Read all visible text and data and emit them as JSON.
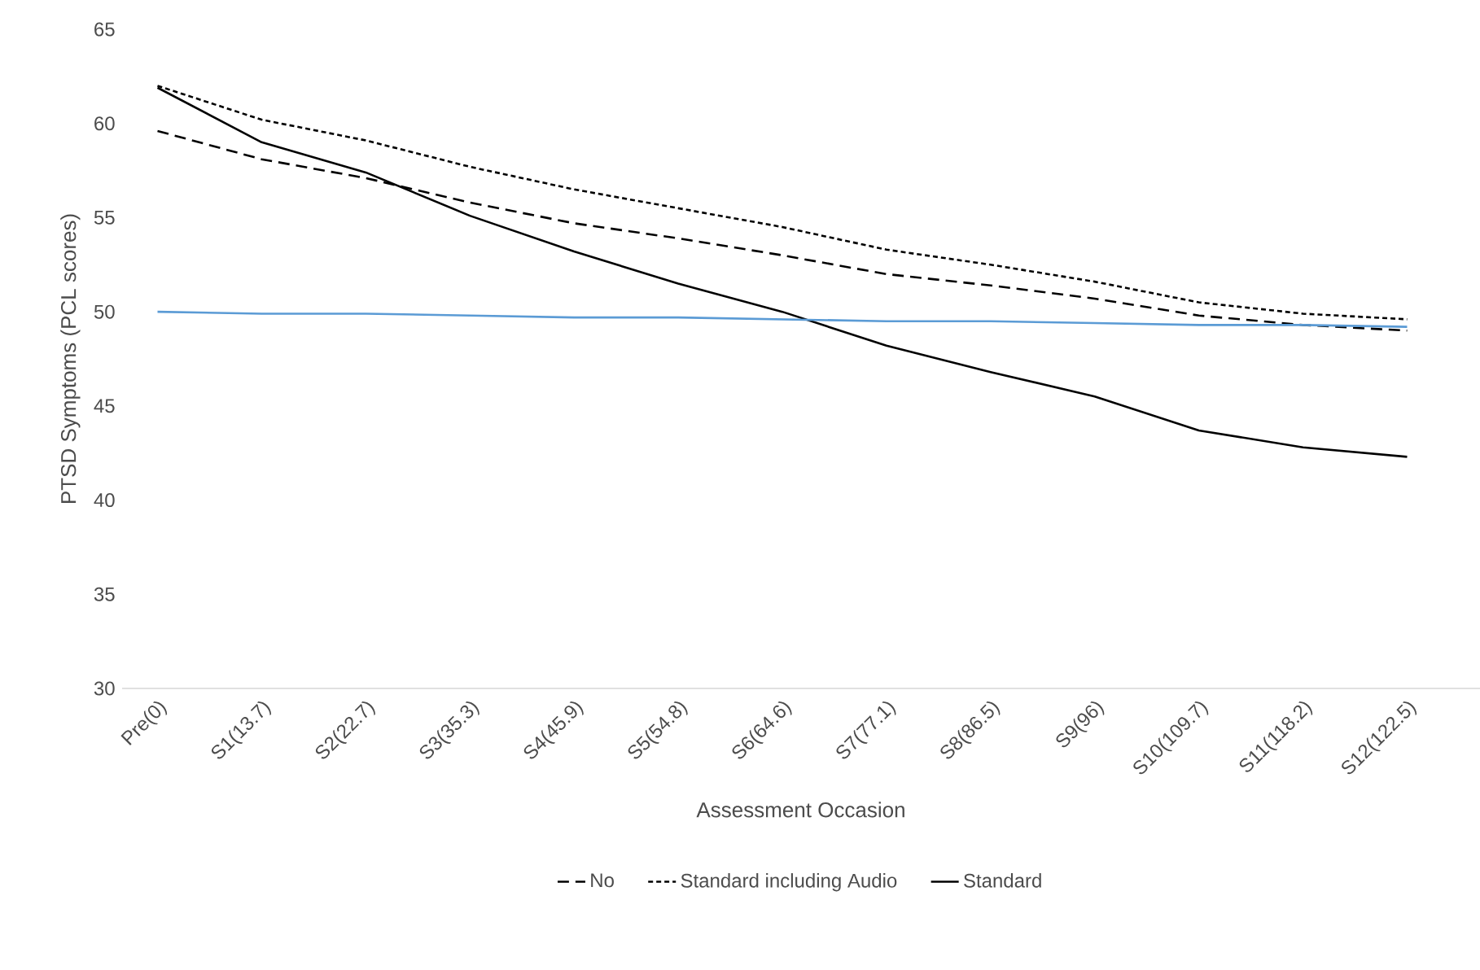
{
  "chart_data": {
    "type": "line",
    "xlabel": "Assessment Occasion",
    "ylabel": "PTSD Symptoms (PCL scores)",
    "categories": [
      "Pre(0)",
      "S1(13.7)",
      "S2(22.7)",
      "S3(35.3)",
      "S4(45.9)",
      "S5(54.8)",
      "S6(64.6)",
      "S7(77.1)",
      "S8(86.5)",
      "S9(96)",
      "S10(109.7)",
      "S11(118.2)",
      "S12(122.5)"
    ],
    "series": [
      {
        "name": "No",
        "color": "#000000",
        "line_style": "dashed",
        "values": [
          59.6,
          58.1,
          57.1,
          55.8,
          54.7,
          53.9,
          53.0,
          52.0,
          51.4,
          50.7,
          49.8,
          49.3,
          49.0
        ]
      },
      {
        "name": "Standard including Audio",
        "color": "#000000",
        "line_style": "dotted",
        "values": [
          62.0,
          60.2,
          59.1,
          57.7,
          56.5,
          55.5,
          54.5,
          53.3,
          52.5,
          51.6,
          50.5,
          49.9,
          49.6
        ]
      },
      {
        "name": "Standard",
        "color": "#000000",
        "line_style": "solid",
        "values": [
          61.9,
          59.0,
          57.4,
          55.1,
          53.2,
          51.5,
          50.0,
          48.2,
          46.8,
          45.5,
          43.7,
          42.8,
          42.3
        ]
      },
      {
        "color": "#5b9bd5",
        "line_style": "solid",
        "values": [
          50.0,
          49.9,
          49.9,
          49.8,
          49.7,
          49.7,
          49.6,
          49.5,
          49.5,
          49.4,
          49.3,
          49.3,
          49.2
        ]
      }
    ],
    "ylim": [
      30,
      65
    ],
    "yticks": [
      30,
      35,
      40,
      45,
      50,
      55,
      60,
      65
    ],
    "grid": false,
    "legend": "bottom",
    "marker": "none"
  }
}
